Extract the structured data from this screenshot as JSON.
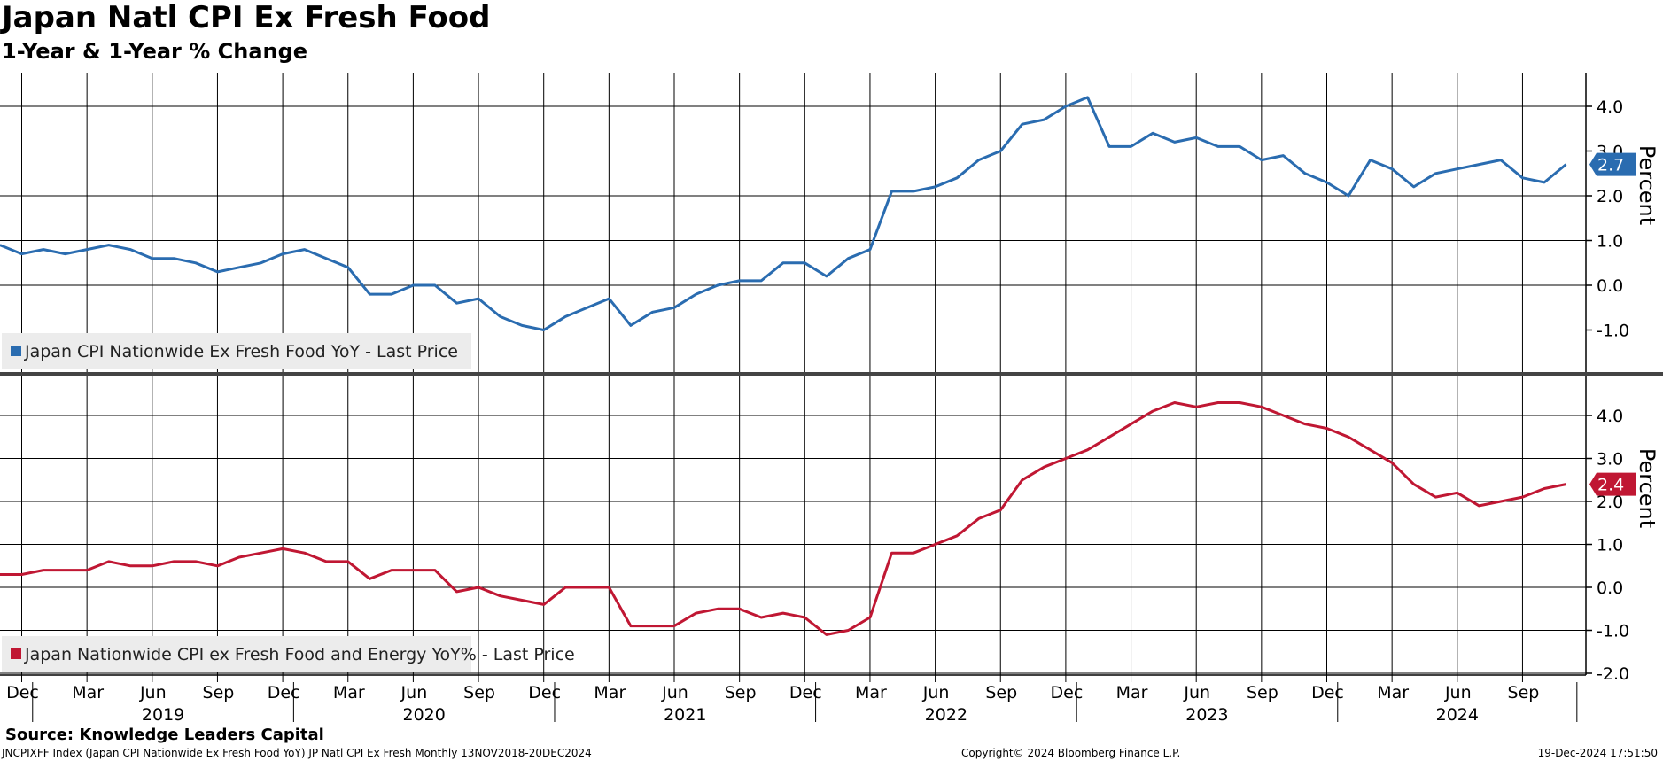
{
  "title": "Japan Natl CPI Ex Fresh Food",
  "subtitle": "1-Year & 1-Year % Change",
  "source": "Source: Knowledge Leaders Capital",
  "footer": {
    "left": "JNCPIXFF Index (Japan CPI Nationwide Ex Fresh Food YoY) JP Natl CPI Ex Fresh  Monthly 13NOV2018-20DEC2024",
    "center": "Copyright© 2024 Bloomberg Finance L.P.",
    "right": "19-Dec-2024 17:51:50"
  },
  "colors": {
    "top_series": "#2a6cb0",
    "bottom_series": "#c01733",
    "grid": "#000000"
  },
  "chart_data": [
    {
      "type": "line",
      "ylabel": "Percent",
      "ylim": [
        -2.0,
        4.9
      ],
      "yticks": [
        -1.0,
        0.0,
        1.0,
        2.0,
        3.0,
        4.0
      ],
      "grid": true,
      "legend_position": "bottom-left",
      "last_value_label": "2.7",
      "x_start": "2018-11",
      "series": [
        {
          "name": "Japan CPI Nationwide Ex Fresh Food YoY - Last Price",
          "values": [
            0.9,
            0.7,
            0.8,
            0.7,
            0.8,
            0.9,
            0.8,
            0.6,
            0.6,
            0.5,
            0.3,
            0.4,
            0.5,
            0.7,
            0.8,
            0.6,
            0.4,
            -0.2,
            -0.2,
            0.0,
            0.0,
            -0.4,
            -0.3,
            -0.7,
            -0.9,
            -1.0,
            -0.7,
            -0.5,
            -0.3,
            -0.9,
            -0.6,
            -0.5,
            -0.2,
            0.0,
            0.1,
            0.1,
            0.5,
            0.5,
            0.2,
            0.6,
            0.8,
            2.1,
            2.1,
            2.2,
            2.4,
            2.8,
            3.0,
            3.6,
            3.7,
            4.0,
            4.2,
            3.1,
            3.1,
            3.4,
            3.2,
            3.3,
            3.1,
            3.1,
            2.8,
            2.9,
            2.5,
            2.3,
            2.0,
            2.8,
            2.6,
            2.2,
            2.5,
            2.6,
            2.7,
            2.8,
            2.4,
            2.3,
            2.7
          ]
        }
      ]
    },
    {
      "type": "line",
      "ylabel": "Percent",
      "ylim": [
        -2.1,
        4.9
      ],
      "yticks": [
        -2.0,
        -1.0,
        0.0,
        1.0,
        2.0,
        3.0,
        4.0
      ],
      "grid": true,
      "legend_position": "bottom-left",
      "last_value_label": "2.4",
      "x_start": "2018-11",
      "series": [
        {
          "name": "Japan Nationwide CPI ex Fresh Food and Energy YoY% - Last Price",
          "values": [
            0.3,
            0.3,
            0.4,
            0.4,
            0.4,
            0.6,
            0.5,
            0.5,
            0.6,
            0.6,
            0.5,
            0.7,
            0.8,
            0.9,
            0.8,
            0.6,
            0.6,
            0.2,
            0.4,
            0.4,
            0.4,
            -0.1,
            0.0,
            -0.2,
            -0.3,
            -0.4,
            0.0,
            0.0,
            0.0,
            -0.9,
            -0.9,
            -0.9,
            -0.6,
            -0.5,
            -0.5,
            -0.7,
            -0.6,
            -0.7,
            -1.1,
            -1.0,
            -0.7,
            0.8,
            0.8,
            1.0,
            1.2,
            1.6,
            1.8,
            2.5,
            2.8,
            3.0,
            3.2,
            3.5,
            3.8,
            4.1,
            4.3,
            4.2,
            4.3,
            4.3,
            4.2,
            4.0,
            3.8,
            3.7,
            3.5,
            3.2,
            2.9,
            2.4,
            2.1,
            2.2,
            1.9,
            2.0,
            2.1,
            2.3,
            2.4
          ]
        }
      ]
    }
  ],
  "x_axis": {
    "month_ticks": [
      "Dec",
      "Mar",
      "Jun",
      "Sep",
      "Dec",
      "Mar",
      "Jun",
      "Sep",
      "Dec",
      "Mar",
      "Jun",
      "Sep",
      "Dec",
      "Mar",
      "Jun",
      "Sep",
      "Dec",
      "Mar",
      "Jun",
      "Sep",
      "Dec",
      "Mar",
      "Jun",
      "Sep"
    ],
    "years": [
      "2019",
      "2020",
      "2021",
      "2022",
      "2023",
      "2024"
    ]
  }
}
